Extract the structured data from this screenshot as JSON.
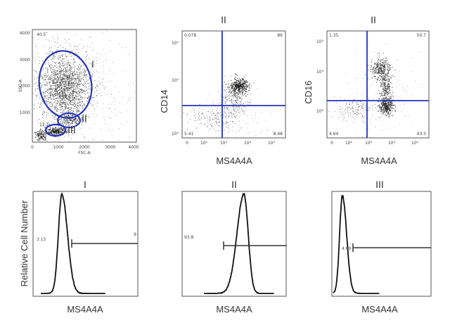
{
  "colors": {
    "gate": "#2233bb",
    "dots": "#1a1a1a",
    "hist": "#111111"
  },
  "scatter": {
    "title": "",
    "xlabel": "FSC-A",
    "ylabel": "SSC-A",
    "xticks": [
      "0",
      "1000",
      "2000",
      "3000",
      "4000"
    ],
    "yticks": [
      "1000",
      "2000",
      "3000",
      "4000"
    ],
    "corner_value": "40.5",
    "gates": [
      {
        "label": "I",
        "percent": ""
      },
      {
        "label": "II",
        "percent": ""
      },
      {
        "label": "III",
        "percent": "12.1"
      }
    ]
  },
  "dotplots": [
    {
      "title": "II",
      "xlabel": "MS4A4A",
      "ylabel": "CD14",
      "xticks": [
        "0",
        "10²",
        "10³",
        "10⁴",
        "10⁵"
      ],
      "yticks": [
        "10³",
        "10⁴",
        "10⁵"
      ],
      "quadrants": {
        "top_left": "0.078",
        "top_right": "86",
        "bottom_left": "5.41",
        "bottom_right": "8.48"
      }
    },
    {
      "title": "II",
      "xlabel": "MS4A4A",
      "ylabel": "CD16",
      "xticks": [
        "0",
        "10²",
        "10³",
        "10⁴",
        "10⁵"
      ],
      "yticks": [
        "10³",
        "10⁴",
        "10⁵"
      ],
      "quadrants": {
        "top_left": "1.35",
        "top_right": "50.7",
        "bottom_left": "4.64",
        "bottom_right": "43.3"
      }
    }
  ],
  "histograms": [
    {
      "title": "I",
      "xlabel": "MS4A4A",
      "gate_left": "3.15",
      "gate_right": "9"
    },
    {
      "title": "II",
      "xlabel": "MS4A4A",
      "gate_left": "93.8",
      "gate_right": ""
    },
    {
      "title": "III",
      "xlabel": "MS4A4A",
      "gate_left": "4.69",
      "gate_right": ""
    }
  ],
  "shared_ylabel": "Relative Cell Number",
  "chart_data": [
    {
      "type": "scatter",
      "xlabel": "FSC-A",
      "ylabel": "SSC-A",
      "xlim": [
        0,
        4000
      ],
      "ylim": [
        0,
        4000
      ],
      "populations": [
        {
          "name": "I",
          "center": [
            1600,
            2300
          ]
        },
        {
          "name": "II",
          "center": [
            1500,
            850
          ]
        },
        {
          "name": "III",
          "center": [
            950,
            350
          ]
        }
      ]
    },
    {
      "type": "scatter",
      "title": "II",
      "xlabel": "MS4A4A",
      "ylabel": "CD14",
      "quadrant_percent": {
        "top_left": 0.078,
        "top_right": 86,
        "bottom_left": 5.41,
        "bottom_right": 8.48
      }
    },
    {
      "type": "scatter",
      "title": "II",
      "xlabel": "MS4A4A",
      "ylabel": "CD16",
      "quadrant_percent": {
        "top_left": 1.35,
        "top_right": 50.7,
        "bottom_left": 4.64,
        "bottom_right": 43.3
      }
    },
    {
      "type": "line",
      "title": "I",
      "xlabel": "MS4A4A",
      "ylabel": "Relative Cell Number",
      "gate_percent": 3.15
    },
    {
      "type": "line",
      "title": "II",
      "xlabel": "MS4A4A",
      "ylabel": "Relative Cell Number",
      "gate_percent": 93.8
    },
    {
      "type": "line",
      "title": "III",
      "xlabel": "MS4A4A",
      "ylabel": "Relative Cell Number",
      "gate_percent": 4.69
    }
  ]
}
